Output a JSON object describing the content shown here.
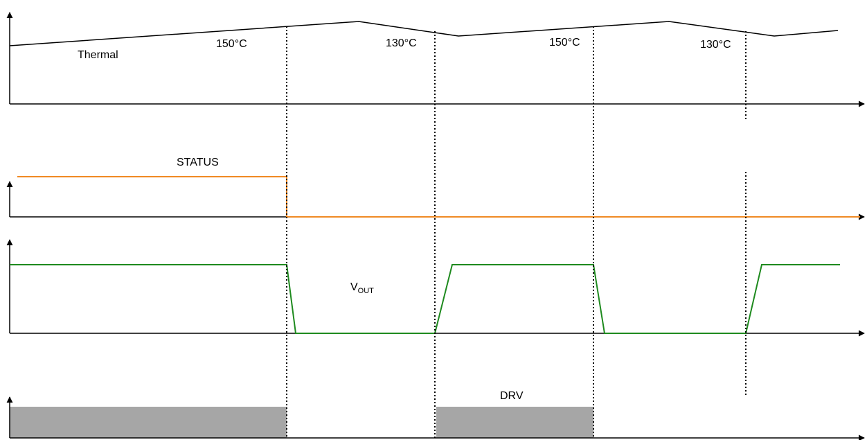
{
  "labels": {
    "thermal": "Thermal",
    "temp_rise_1": "150°C",
    "temp_fall_1": "130°C",
    "temp_rise_2": "150°C",
    "temp_fall_2": "130°C",
    "status": "STATUS",
    "vout_main": "V",
    "vout_sub": "OUT",
    "drv": "DRV"
  },
  "colors": {
    "axis": "#000000",
    "status_line": "#f08a24",
    "vout_line": "#1e8a1e",
    "drv_fill": "#a6a6a6",
    "marker_line": "#000000"
  }
}
